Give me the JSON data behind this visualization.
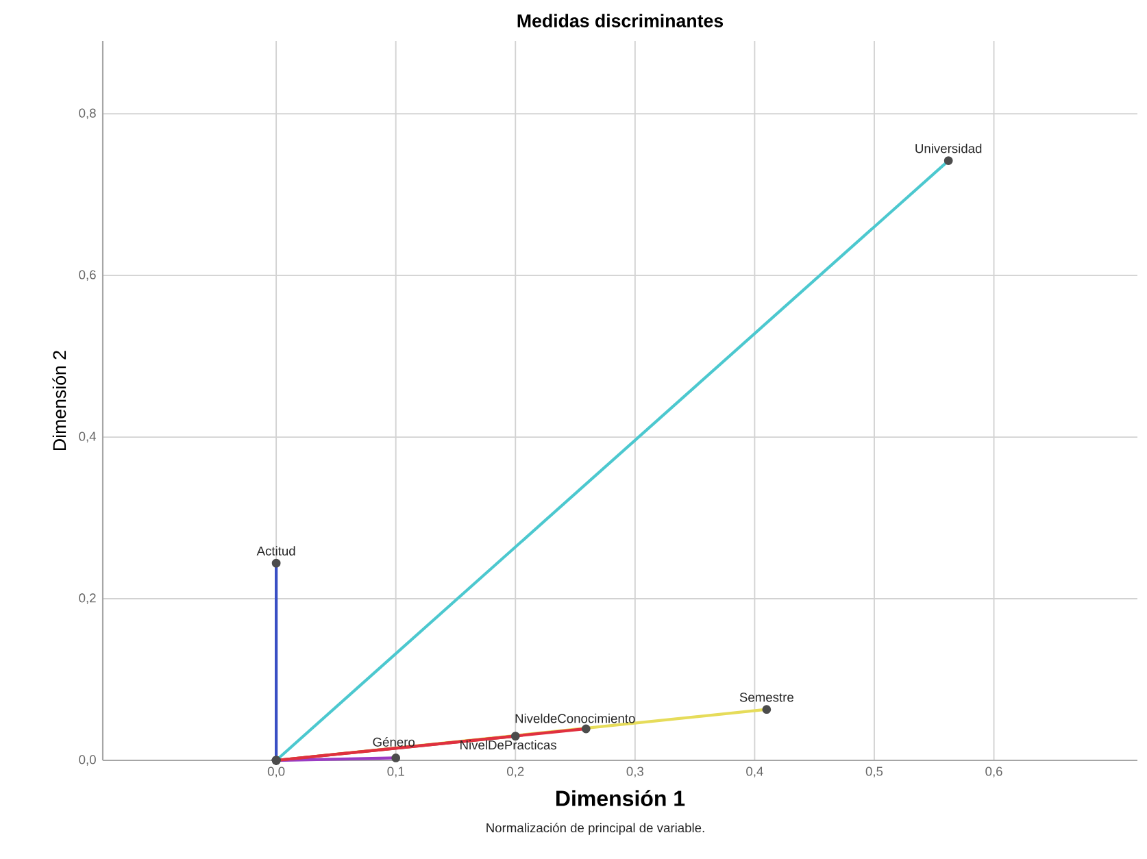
{
  "chart_data": {
    "type": "line",
    "title": "Medidas discriminantes",
    "xlabel": "Dimensión 1",
    "ylabel": "Dimensión 2",
    "annotations": [
      "Normalización de principal de variable."
    ],
    "xlim": [
      -0.145,
      0.72
    ],
    "ylim": [
      0,
      0.89
    ],
    "xticks": [
      {
        "value": 0,
        "label": "0,0"
      },
      {
        "value": 0.1,
        "label": "0,1"
      },
      {
        "value": 0.2,
        "label": "0,2"
      },
      {
        "value": 0.3,
        "label": "0,3"
      },
      {
        "value": 0.4,
        "label": "0,4"
      },
      {
        "value": 0.5,
        "label": "0,5"
      },
      {
        "value": 0.6,
        "label": "0,6"
      }
    ],
    "yticks": [
      {
        "value": 0,
        "label": "0,0"
      },
      {
        "value": 0.2,
        "label": "0,2"
      },
      {
        "value": 0.4,
        "label": "0,4"
      },
      {
        "value": 0.6,
        "label": "0,6"
      },
      {
        "value": 0.8,
        "label": "0,8"
      }
    ],
    "grid": true,
    "marker": "circle",
    "line_style": "solid",
    "series": [
      {
        "name": "Semestre",
        "color": "#e6dc5a",
        "x": [
          0,
          0.41
        ],
        "values": [
          0,
          0.063
        ]
      },
      {
        "name": "Universidad",
        "color": "#4cc8cf",
        "x": [
          0,
          0.562
        ],
        "values": [
          0,
          0.742
        ]
      },
      {
        "name": "Actitud",
        "color": "#3a4fc4",
        "x": [
          0,
          0.0
        ],
        "values": [
          0,
          0.244
        ]
      },
      {
        "name": "Género",
        "color": "#9a3cc4",
        "x": [
          0,
          0.1
        ],
        "values": [
          0,
          0.003
        ]
      },
      {
        "name": "NivelDePracticas",
        "color": "#b24a3a",
        "x": [
          0,
          0.2
        ],
        "values": [
          0,
          0.03
        ]
      },
      {
        "name": "NiveldeConocimiento",
        "color": "#e0303f",
        "x": [
          0,
          0.259
        ],
        "values": [
          0,
          0.039
        ]
      }
    ]
  }
}
